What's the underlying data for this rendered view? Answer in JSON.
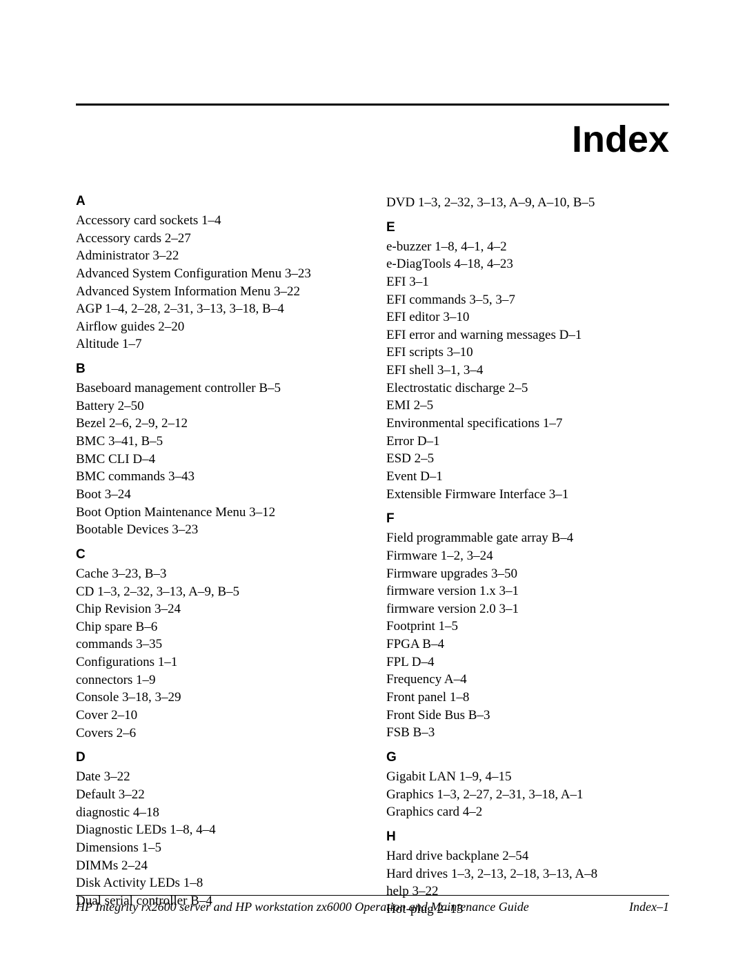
{
  "page_title": "Index",
  "footer_left": "HP Integrity rx2600 server and HP workstation zx6000 Operation and Maintenance Guide",
  "footer_right": "Index–1",
  "left_column": {
    "sections": [
      {
        "letter": "A",
        "entries": [
          "Accessory card sockets 1–4",
          "Accessory cards 2–27",
          "Administrator 3–22",
          "Advanced System Configuration Menu 3–23",
          "Advanced System Information Menu 3–22",
          "AGP 1–4, 2–28, 2–31, 3–13, 3–18, B–4",
          "Airflow guides 2–20",
          "Altitude 1–7"
        ]
      },
      {
        "letter": "B",
        "entries": [
          "Baseboard management controller B–5",
          "Battery 2–50",
          "Bezel 2–6, 2–9, 2–12",
          "BMC 3–41, B–5",
          "BMC CLI D–4",
          "BMC commands 3–43",
          "Boot 3–24",
          "Boot Option Maintenance Menu 3–12",
          "Bootable Devices 3–23"
        ]
      },
      {
        "letter": "C",
        "entries": [
          "Cache 3–23, B–3",
          "CD 1–3, 2–32, 3–13, A–9, B–5",
          "Chip Revision 3–24",
          "Chip spare B–6",
          "commands 3–35",
          "Configurations 1–1",
          "connectors 1–9",
          "Console 3–18, 3–29",
          "Cover 2–10",
          "Covers 2–6"
        ]
      },
      {
        "letter": "D",
        "entries": [
          "Date 3–22",
          "Default 3–22",
          "diagnostic 4–18",
          "Diagnostic LEDs 1–8, 4–4",
          "Dimensions 1–5",
          "DIMMs 2–24",
          "Disk Activity LEDs 1–8",
          "Dual serial controller B–4"
        ]
      }
    ]
  },
  "right_column": {
    "lead_entry": "DVD 1–3, 2–32, 3–13, A–9, A–10, B–5",
    "sections": [
      {
        "letter": "E",
        "entries": [
          "e-buzzer 1–8, 4–1, 4–2",
          "e-DiagTools 4–18, 4–23",
          "EFI 3–1",
          "EFI commands 3–5, 3–7",
          "EFI editor 3–10",
          "EFI error and warning messages D–1",
          "EFI scripts 3–10",
          "EFI shell 3–1, 3–4",
          "Electrostatic discharge 2–5",
          "EMI 2–5",
          "Environmental specifications 1–7",
          "Error D–1",
          "ESD 2–5",
          "Event D–1",
          "Extensible Firmware Interface 3–1"
        ]
      },
      {
        "letter": "F",
        "entries": [
          "Field programmable gate array B–4",
          "Firmware 1–2, 3–24",
          "Firmware upgrades 3–50",
          "firmware version 1.x 3–1",
          "firmware version 2.0 3–1",
          "Footprint 1–5",
          "FPGA B–4",
          "FPL D–4",
          "Frequency A–4",
          "Front panel 1–8",
          "Front Side Bus B–3",
          "FSB B–3"
        ]
      },
      {
        "letter": "G",
        "entries": [
          "Gigabit LAN 1–9, 4–15",
          "Graphics 1–3, 2–27, 2–31, 3–18, A–1",
          "Graphics card 4–2"
        ]
      },
      {
        "letter": "H",
        "entries": [
          "Hard drive backplane 2–54",
          "Hard drives 1–3, 2–13, 2–18, 3–13, A–8",
          "help 3–22",
          "Hot-plug 2–13"
        ]
      }
    ]
  }
}
